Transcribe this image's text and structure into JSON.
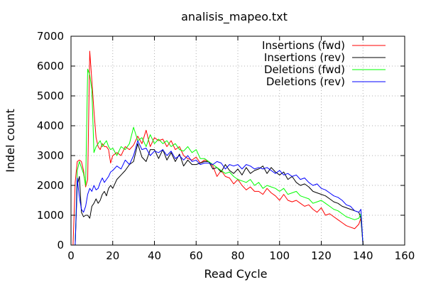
{
  "chart_data": {
    "type": "line",
    "title": "analisis_mapeo.txt",
    "xlabel": "Read Cycle",
    "ylabel": "Indel count",
    "xlim": [
      0,
      160
    ],
    "ylim": [
      0,
      7000
    ],
    "x_ticks": [
      0,
      20,
      40,
      60,
      80,
      100,
      120,
      140,
      160
    ],
    "y_ticks": [
      0,
      1000,
      2000,
      3000,
      4000,
      5000,
      6000,
      7000
    ],
    "grid": true,
    "legend_position": "top-right",
    "series": [
      {
        "name": "Insertions (fwd)",
        "color": "#ff0000",
        "x": [
          1,
          2,
          3,
          4,
          5,
          6,
          7,
          8,
          9,
          10,
          11,
          12,
          13,
          14,
          15,
          16,
          17,
          18,
          19,
          20,
          22,
          24,
          26,
          28,
          30,
          32,
          34,
          36,
          38,
          40,
          42,
          44,
          46,
          48,
          50,
          52,
          54,
          56,
          58,
          60,
          62,
          64,
          66,
          68,
          70,
          72,
          74,
          76,
          78,
          80,
          82,
          84,
          86,
          88,
          90,
          92,
          94,
          96,
          98,
          100,
          102,
          104,
          106,
          108,
          110,
          112,
          114,
          116,
          118,
          120,
          122,
          124,
          126,
          128,
          130,
          132,
          134,
          136,
          138,
          139,
          140
        ],
        "y": [
          0,
          2100,
          2800,
          2850,
          2800,
          2500,
          1950,
          2200,
          6500,
          5500,
          4500,
          3600,
          3300,
          3200,
          3400,
          3300,
          3300,
          3200,
          2750,
          3000,
          3100,
          3000,
          3300,
          3200,
          3350,
          3650,
          3400,
          3850,
          3300,
          3600,
          3500,
          3550,
          3300,
          3500,
          3200,
          3300,
          3000,
          2900,
          2850,
          2950,
          2750,
          2850,
          2800,
          2650,
          2300,
          2500,
          2300,
          2250,
          2050,
          2200,
          2000,
          1850,
          1950,
          1800,
          1800,
          1700,
          1900,
          1750,
          1650,
          1500,
          1700,
          1500,
          1450,
          1500,
          1400,
          1300,
          1350,
          1200,
          1100,
          1250,
          1000,
          1050,
          950,
          850,
          750,
          650,
          600,
          550,
          700,
          900,
          0
        ]
      },
      {
        "name": "Insertions (rev)",
        "color": "#000000",
        "x": [
          1,
          2,
          3,
          4,
          5,
          6,
          7,
          8,
          9,
          10,
          11,
          12,
          13,
          14,
          15,
          16,
          17,
          18,
          19,
          20,
          22,
          24,
          26,
          28,
          30,
          32,
          34,
          36,
          38,
          40,
          42,
          44,
          46,
          48,
          50,
          52,
          54,
          56,
          58,
          60,
          62,
          64,
          66,
          68,
          70,
          72,
          74,
          76,
          78,
          80,
          82,
          84,
          86,
          88,
          90,
          92,
          94,
          96,
          98,
          100,
          102,
          104,
          106,
          108,
          110,
          112,
          114,
          116,
          118,
          120,
          122,
          124,
          126,
          128,
          130,
          132,
          134,
          136,
          138,
          139,
          140
        ],
        "y": [
          0,
          0,
          2000,
          2300,
          1100,
          950,
          1000,
          1000,
          900,
          1300,
          1400,
          1550,
          1400,
          1500,
          1700,
          1800,
          1650,
          1900,
          2000,
          1900,
          2200,
          2350,
          2500,
          2700,
          2800,
          3400,
          2950,
          2800,
          3200,
          3200,
          2900,
          3200,
          2850,
          3100,
          2800,
          3050,
          2650,
          2850,
          2700,
          2700,
          2750,
          2800,
          2800,
          2550,
          2600,
          2450,
          2700,
          2500,
          2400,
          2550,
          2350,
          2600,
          2400,
          2500,
          2550,
          2650,
          2400,
          2600,
          2450,
          2350,
          2450,
          2200,
          2300,
          2100,
          2000,
          2050,
          1950,
          1800,
          1750,
          1700,
          1650,
          1550,
          1450,
          1400,
          1300,
          1250,
          1200,
          1150,
          1100,
          900,
          0
        ]
      },
      {
        "name": "Deletions (fwd)",
        "color": "#00ff00",
        "x": [
          1,
          2,
          3,
          4,
          5,
          6,
          7,
          8,
          9,
          10,
          11,
          12,
          13,
          14,
          15,
          16,
          17,
          18,
          19,
          20,
          22,
          24,
          26,
          28,
          30,
          32,
          34,
          36,
          38,
          40,
          42,
          44,
          46,
          48,
          50,
          52,
          54,
          56,
          58,
          60,
          62,
          64,
          66,
          68,
          70,
          72,
          74,
          76,
          78,
          80,
          82,
          84,
          86,
          88,
          90,
          92,
          94,
          96,
          98,
          100,
          102,
          104,
          106,
          108,
          110,
          112,
          114,
          116,
          118,
          120,
          122,
          124,
          126,
          128,
          130,
          132,
          134,
          136,
          138,
          139,
          140
        ],
        "y": [
          0,
          0,
          2500,
          2800,
          2600,
          2400,
          2000,
          5900,
          5700,
          5200,
          3100,
          3300,
          3400,
          3500,
          3300,
          3400,
          3500,
          3300,
          3200,
          3250,
          3000,
          3300,
          3200,
          3400,
          3950,
          3500,
          3600,
          3300,
          3700,
          3400,
          3550,
          3400,
          3500,
          3300,
          3400,
          3200,
          3150,
          3300,
          3100,
          3200,
          2900,
          2900,
          2800,
          2700,
          2600,
          2500,
          2400,
          2450,
          2300,
          2200,
          2150,
          2100,
          2200,
          2000,
          2100,
          1900,
          2000,
          1950,
          1900,
          1800,
          1900,
          1700,
          1750,
          1800,
          1650,
          1600,
          1550,
          1400,
          1450,
          1500,
          1400,
          1300,
          1200,
          1150,
          1050,
          950,
          900,
          850,
          900,
          1050,
          0
        ]
      },
      {
        "name": "Deletions (rev)",
        "color": "#0000ff",
        "x": [
          1,
          2,
          3,
          4,
          5,
          6,
          7,
          8,
          9,
          10,
          11,
          12,
          13,
          14,
          15,
          16,
          17,
          18,
          19,
          20,
          22,
          24,
          26,
          28,
          30,
          32,
          34,
          36,
          38,
          40,
          42,
          44,
          46,
          48,
          50,
          52,
          54,
          56,
          58,
          60,
          62,
          64,
          66,
          68,
          70,
          72,
          74,
          76,
          78,
          80,
          82,
          84,
          86,
          88,
          90,
          92,
          94,
          96,
          98,
          100,
          102,
          104,
          106,
          108,
          110,
          112,
          114,
          116,
          118,
          120,
          122,
          124,
          126,
          128,
          130,
          132,
          134,
          136,
          138,
          139,
          140
        ],
        "y": [
          0,
          0,
          2250,
          1600,
          1200,
          1100,
          1300,
          1700,
          1900,
          1800,
          2000,
          1850,
          1900,
          2100,
          2250,
          2100,
          2200,
          2300,
          2450,
          2500,
          2650,
          2550,
          2850,
          2700,
          3000,
          3500,
          3200,
          3250,
          3000,
          3150,
          3100,
          3200,
          3000,
          3150,
          2900,
          3000,
          2850,
          3000,
          2800,
          2850,
          2700,
          2750,
          2750,
          2700,
          2800,
          2750,
          2550,
          2700,
          2650,
          2700,
          2550,
          2700,
          2650,
          2550,
          2600,
          2550,
          2600,
          2500,
          2400,
          2500,
          2350,
          2400,
          2300,
          2350,
          2200,
          2250,
          2100,
          2000,
          2050,
          1900,
          1850,
          1750,
          1650,
          1600,
          1500,
          1350,
          1300,
          1150,
          1100,
          1200,
          0
        ]
      }
    ]
  }
}
